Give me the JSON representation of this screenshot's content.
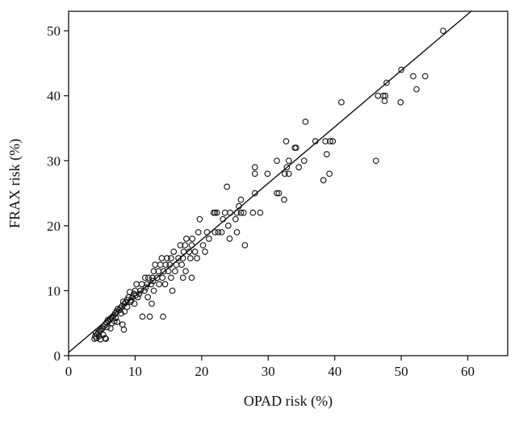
{
  "chart_data": {
    "type": "scatter",
    "title": "",
    "xlabel": "OPAD risk (%)",
    "ylabel": "FRAX risk (%)",
    "xlim": [
      0,
      66
    ],
    "ylim": [
      0,
      53
    ],
    "xticks": [
      0,
      10,
      20,
      30,
      40,
      50,
      60
    ],
    "yticks": [
      0,
      10,
      20,
      30,
      40,
      50
    ],
    "grid": false,
    "legend": "none",
    "marker": "open-circle",
    "colors": {
      "points": "#111111",
      "line": "#111111",
      "axes": "#111111"
    },
    "reference_line": {
      "type": "regression",
      "points": [
        [
          0,
          0.5
        ],
        [
          60.5,
          53
        ]
      ]
    },
    "series": [
      {
        "points": [
          [
            56.3,
            50
          ],
          [
            50.0,
            44
          ],
          [
            47.8,
            42
          ],
          [
            51.8,
            43
          ],
          [
            53.6,
            43
          ],
          [
            52.3,
            41
          ],
          [
            47.3,
            40
          ],
          [
            47.5,
            39.2
          ],
          [
            46.5,
            40
          ],
          [
            47.6,
            40
          ],
          [
            49.9,
            39
          ],
          [
            46.2,
            30
          ],
          [
            41.0,
            39
          ],
          [
            35.6,
            36
          ],
          [
            39.7,
            33
          ],
          [
            38.6,
            33
          ],
          [
            37.1,
            33
          ],
          [
            39.3,
            33
          ],
          [
            38.8,
            31
          ],
          [
            39.2,
            28
          ],
          [
            38.3,
            27
          ],
          [
            34.2,
            32
          ],
          [
            34.0,
            32
          ],
          [
            32.7,
            33
          ],
          [
            31.3,
            30
          ],
          [
            33.1,
            30
          ],
          [
            35.4,
            30
          ],
          [
            32.8,
            29
          ],
          [
            34.6,
            29
          ],
          [
            32.5,
            28
          ],
          [
            33.1,
            28
          ],
          [
            32.4,
            24
          ],
          [
            31.6,
            25
          ],
          [
            31.3,
            25
          ],
          [
            29.9,
            28
          ],
          [
            28.0,
            29
          ],
          [
            28.0,
            28
          ],
          [
            28.0,
            25
          ],
          [
            28.8,
            22
          ],
          [
            27.7,
            22
          ],
          [
            26.5,
            17
          ],
          [
            23.8,
            26
          ],
          [
            25.9,
            24
          ],
          [
            25.6,
            23
          ],
          [
            25.3,
            22
          ],
          [
            25.9,
            22
          ],
          [
            26.3,
            22
          ],
          [
            25.1,
            21
          ],
          [
            24.3,
            22
          ],
          [
            23.5,
            22
          ],
          [
            23.2,
            21
          ],
          [
            24.0,
            20
          ],
          [
            24.2,
            18
          ],
          [
            25.3,
            19
          ],
          [
            23.0,
            19
          ],
          [
            22.5,
            19
          ],
          [
            22.0,
            19
          ],
          [
            22.0,
            22
          ],
          [
            21.8,
            22
          ],
          [
            22.3,
            22
          ],
          [
            21.1,
            18
          ],
          [
            20.8,
            19
          ],
          [
            20.2,
            17
          ],
          [
            20.5,
            16
          ],
          [
            19.7,
            21
          ],
          [
            19.5,
            19
          ],
          [
            19.3,
            15
          ],
          [
            19.0,
            16
          ],
          [
            18.6,
            18
          ],
          [
            18.5,
            17
          ],
          [
            18.1,
            16
          ],
          [
            18.3,
            15
          ],
          [
            18.5,
            12
          ],
          [
            17.7,
            18
          ],
          [
            17.5,
            17
          ],
          [
            17.3,
            16
          ],
          [
            17.2,
            15
          ],
          [
            17.0,
            14
          ],
          [
            17.2,
            12
          ],
          [
            17.6,
            13
          ],
          [
            16.8,
            17
          ],
          [
            16.5,
            15
          ],
          [
            16.2,
            14
          ],
          [
            16.0,
            13
          ],
          [
            15.8,
            16
          ],
          [
            15.4,
            15
          ],
          [
            15.2,
            14
          ],
          [
            15.0,
            13
          ],
          [
            15.4,
            12
          ],
          [
            15.6,
            10
          ],
          [
            14.8,
            15
          ],
          [
            14.6,
            14
          ],
          [
            14.3,
            13
          ],
          [
            14.1,
            12
          ],
          [
            14.5,
            11
          ],
          [
            14.0,
            15
          ],
          [
            13.8,
            14
          ],
          [
            13.5,
            13
          ],
          [
            13.3,
            12
          ],
          [
            13.6,
            11
          ],
          [
            14.2,
            6
          ],
          [
            13.0,
            14
          ],
          [
            12.8,
            13
          ],
          [
            12.6,
            12
          ],
          [
            12.4,
            11
          ],
          [
            12.8,
            10
          ],
          [
            12.5,
            8
          ],
          [
            12.2,
            6
          ],
          [
            12.0,
            12
          ],
          [
            11.8,
            11
          ],
          [
            11.6,
            10.5
          ],
          [
            11.4,
            10
          ],
          [
            11.9,
            9
          ],
          [
            11.5,
            12
          ],
          [
            11.0,
            11
          ],
          [
            10.8,
            10
          ],
          [
            10.6,
            9.5
          ],
          [
            10.4,
            9
          ],
          [
            11.1,
            6
          ],
          [
            10.2,
            11
          ],
          [
            10.0,
            10
          ],
          [
            9.8,
            9.5
          ],
          [
            9.6,
            9
          ],
          [
            9.4,
            8.5
          ],
          [
            9.9,
            8
          ],
          [
            9.2,
            9.8
          ],
          [
            9.0,
            9
          ],
          [
            8.8,
            8.6
          ],
          [
            8.6,
            8.2
          ],
          [
            8.4,
            8
          ],
          [
            8.8,
            7.5
          ],
          [
            8.2,
            8.3
          ],
          [
            8.0,
            7.6
          ],
          [
            7.8,
            7.3
          ],
          [
            7.6,
            7
          ],
          [
            7.9,
            6.5
          ],
          [
            8.4,
            6.8
          ],
          [
            7.4,
            7.2
          ],
          [
            7.2,
            6.8
          ],
          [
            7.0,
            6.5
          ],
          [
            6.8,
            6.2
          ],
          [
            7.1,
            5.8
          ],
          [
            8.1,
            4.8
          ],
          [
            8.3,
            4
          ],
          [
            6.6,
            6
          ],
          [
            6.4,
            5.8
          ],
          [
            6.2,
            5.6
          ],
          [
            6.0,
            5.3
          ],
          [
            6.5,
            5
          ],
          [
            7.3,
            5.2
          ],
          [
            5.9,
            5.5
          ],
          [
            5.7,
            5.1
          ],
          [
            5.5,
            4.8
          ],
          [
            5.3,
            4.5
          ],
          [
            5.8,
            4.4
          ],
          [
            5.1,
            4.2
          ],
          [
            4.9,
            4
          ],
          [
            4.7,
            3.8
          ],
          [
            4.5,
            3.6
          ],
          [
            4.3,
            3.3
          ],
          [
            4.6,
            3
          ],
          [
            5.2,
            3.2
          ],
          [
            4.1,
            3.5
          ],
          [
            4.0,
            3
          ],
          [
            4.2,
            2.7
          ],
          [
            4.8,
            2.5
          ],
          [
            5.5,
            2.7
          ],
          [
            5.6,
            2.6
          ],
          [
            3.9,
            2.6
          ],
          [
            6.3,
            4.2
          ],
          [
            6.9,
            5.3
          ],
          [
            9.3,
            8.3
          ],
          [
            10.1,
            9.3
          ],
          [
            12.7,
            11.5
          ]
        ]
      }
    ]
  }
}
